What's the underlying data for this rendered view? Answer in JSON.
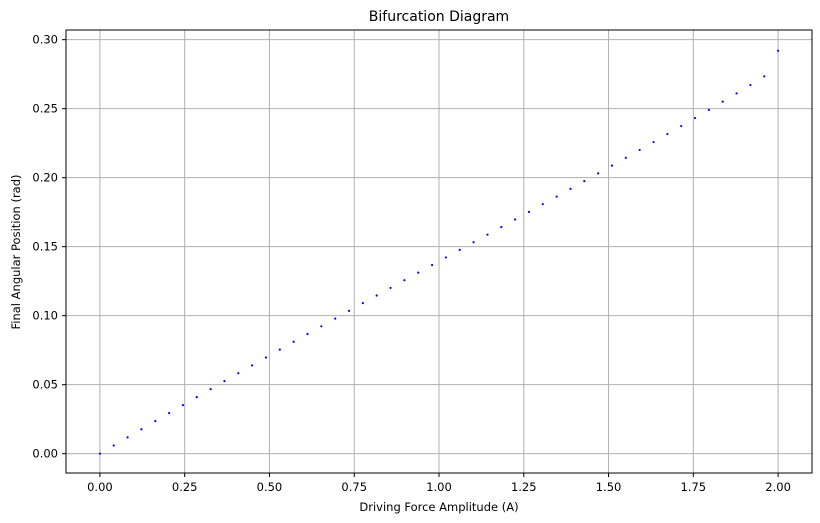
{
  "chart_data": {
    "type": "scatter",
    "title": "Bifurcation Diagram",
    "xlabel": "Driving Force Amplitude (A)",
    "ylabel": "Final Angular Position (rad)",
    "xlim": [
      -0.1,
      2.1
    ],
    "ylim": [
      -0.014,
      0.307
    ],
    "xticks": [
      0.0,
      0.25,
      0.5,
      0.75,
      1.0,
      1.25,
      1.5,
      1.75,
      2.0
    ],
    "xtick_labels": [
      "0.00",
      "0.25",
      "0.50",
      "0.75",
      "1.00",
      "1.25",
      "1.50",
      "1.75",
      "2.00"
    ],
    "yticks": [
      0.0,
      0.05,
      0.1,
      0.15,
      0.2,
      0.25,
      0.3
    ],
    "ytick_labels": [
      "0.00",
      "0.05",
      "0.10",
      "0.15",
      "0.20",
      "0.25",
      "0.30"
    ],
    "grid": true,
    "series": [
      {
        "color": "#0000ff",
        "x": [
          0.0,
          0.0408,
          0.0816,
          0.1224,
          0.1633,
          0.2041,
          0.2449,
          0.2857,
          0.3265,
          0.3673,
          0.4082,
          0.449,
          0.4898,
          0.5306,
          0.5714,
          0.6122,
          0.6531,
          0.6939,
          0.7347,
          0.7755,
          0.8163,
          0.8571,
          0.898,
          0.9388,
          0.9796,
          1.0204,
          1.0612,
          1.102,
          1.1429,
          1.1837,
          1.2245,
          1.2653,
          1.3061,
          1.3469,
          1.3878,
          1.4286,
          1.4694,
          1.5102,
          1.551,
          1.5918,
          1.6327,
          1.6735,
          1.7143,
          1.7551,
          1.7959,
          1.8367,
          1.8776,
          1.9184,
          1.9592,
          2.0
        ],
        "y": [
          0.0,
          0.0059,
          0.0118,
          0.0177,
          0.0236,
          0.0294,
          0.0352,
          0.041,
          0.0468,
          0.0526,
          0.0583,
          0.064,
          0.0697,
          0.0754,
          0.0811,
          0.0867,
          0.0923,
          0.0979,
          0.1035,
          0.1091,
          0.1146,
          0.1201,
          0.1257,
          0.1312,
          0.1367,
          0.1422,
          0.1477,
          0.1532,
          0.1587,
          0.1642,
          0.1697,
          0.1752,
          0.1808,
          0.1863,
          0.1919,
          0.1975,
          0.2031,
          0.2087,
          0.2144,
          0.2201,
          0.2258,
          0.2316,
          0.2374,
          0.2432,
          0.2491,
          0.2551,
          0.2611,
          0.2672,
          0.2734,
          0.292
        ]
      }
    ]
  }
}
